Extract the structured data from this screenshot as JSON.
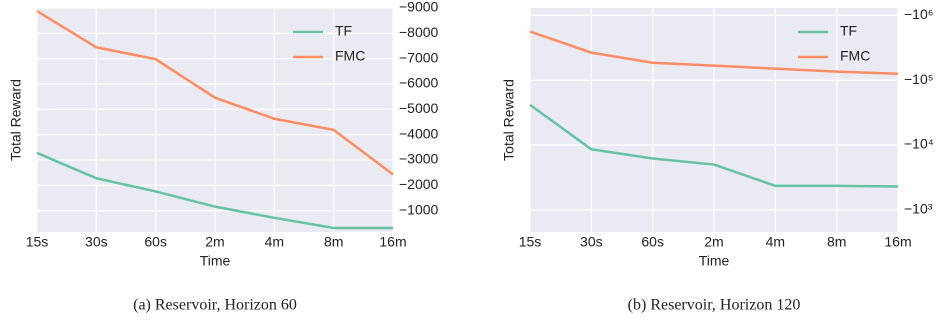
{
  "chart_data": [
    {
      "type": "line",
      "caption": "(a) Reservoir, Horizon 60",
      "xlabel": "Time",
      "ylabel": "Total Reward",
      "categories": [
        "15s",
        "30s",
        "60s",
        "2m",
        "4m",
        "8m",
        "16m"
      ],
      "series": [
        {
          "name": "TF",
          "color": "#66c2a5",
          "values": [
            -3280,
            -2280,
            -1760,
            -1160,
            -720,
            -320,
            -320
          ]
        },
        {
          "name": "FMC",
          "color": "#fc8d62",
          "values": [
            -8880,
            -7450,
            -6980,
            -5460,
            -4630,
            -4190,
            -2430
          ]
        }
      ],
      "ylim": [
        -160,
        -9000
      ],
      "log": false,
      "yticks": [
        {
          "value": -9000,
          "label": "−9000"
        },
        {
          "value": -8000,
          "label": "−8000"
        },
        {
          "value": -7000,
          "label": "−7000"
        },
        {
          "value": -6000,
          "label": "−6000"
        },
        {
          "value": -5000,
          "label": "−5000"
        },
        {
          "value": -4000,
          "label": "−4000"
        },
        {
          "value": -3000,
          "label": "−3000"
        },
        {
          "value": -2000,
          "label": "−2000"
        },
        {
          "value": -1000,
          "label": "−1000"
        }
      ],
      "grid": true,
      "legend": "upper right"
    },
    {
      "type": "line",
      "caption": "(b) Reservoir, Horizon 120",
      "xlabel": "Time",
      "ylabel": "Total Reward",
      "categories": [
        "15s",
        "30s",
        "60s",
        "2m",
        "4m",
        "8m",
        "16m"
      ],
      "series": [
        {
          "name": "TF",
          "color": "#66c2a5",
          "values": [
            -41500,
            -8600,
            -6200,
            -5000,
            -2350,
            -2350,
            -2300
          ]
        },
        {
          "name": "FMC",
          "color": "#fc8d62",
          "values": [
            -560000,
            -265000,
            -185000,
            -167000,
            -150000,
            -135000,
            -125000
          ]
        }
      ],
      "ylim": [
        -457,
        -1290000
      ],
      "log": true,
      "yticks": [
        {
          "value": -1000000,
          "label": "−10⁶"
        },
        {
          "value": -100000,
          "label": "−10⁵"
        },
        {
          "value": -10000,
          "label": "−10⁴"
        },
        {
          "value": -1000,
          "label": "−10³"
        }
      ],
      "grid": true,
      "legend": "upper right"
    }
  ]
}
